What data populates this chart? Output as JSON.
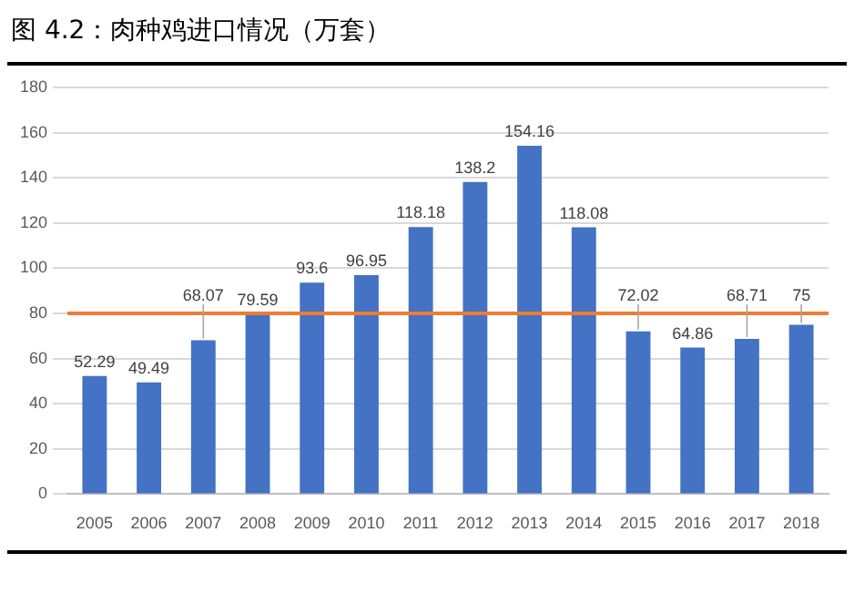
{
  "chart_data": {
    "type": "bar",
    "title": "图 4.2：肉种鸡进口情况（万套）",
    "categories": [
      "2005",
      "2006",
      "2007",
      "2008",
      "2009",
      "2010",
      "2011",
      "2012",
      "2013",
      "2014",
      "2015",
      "2016",
      "2017",
      "2018"
    ],
    "values": [
      52.29,
      49.49,
      68.07,
      79.59,
      93.6,
      96.95,
      118.18,
      138.2,
      154.16,
      118.08,
      72.02,
      64.86,
      68.71,
      75
    ],
    "color": "#4472c4",
    "ylim": [
      0,
      180
    ],
    "yticks": [
      0,
      20,
      40,
      60,
      80,
      100,
      120,
      140,
      160,
      180
    ],
    "grid": "y",
    "data_labels": true,
    "ref_lines": [
      {
        "axis": "y",
        "value": 80,
        "color": "#ed7d31"
      }
    ]
  }
}
